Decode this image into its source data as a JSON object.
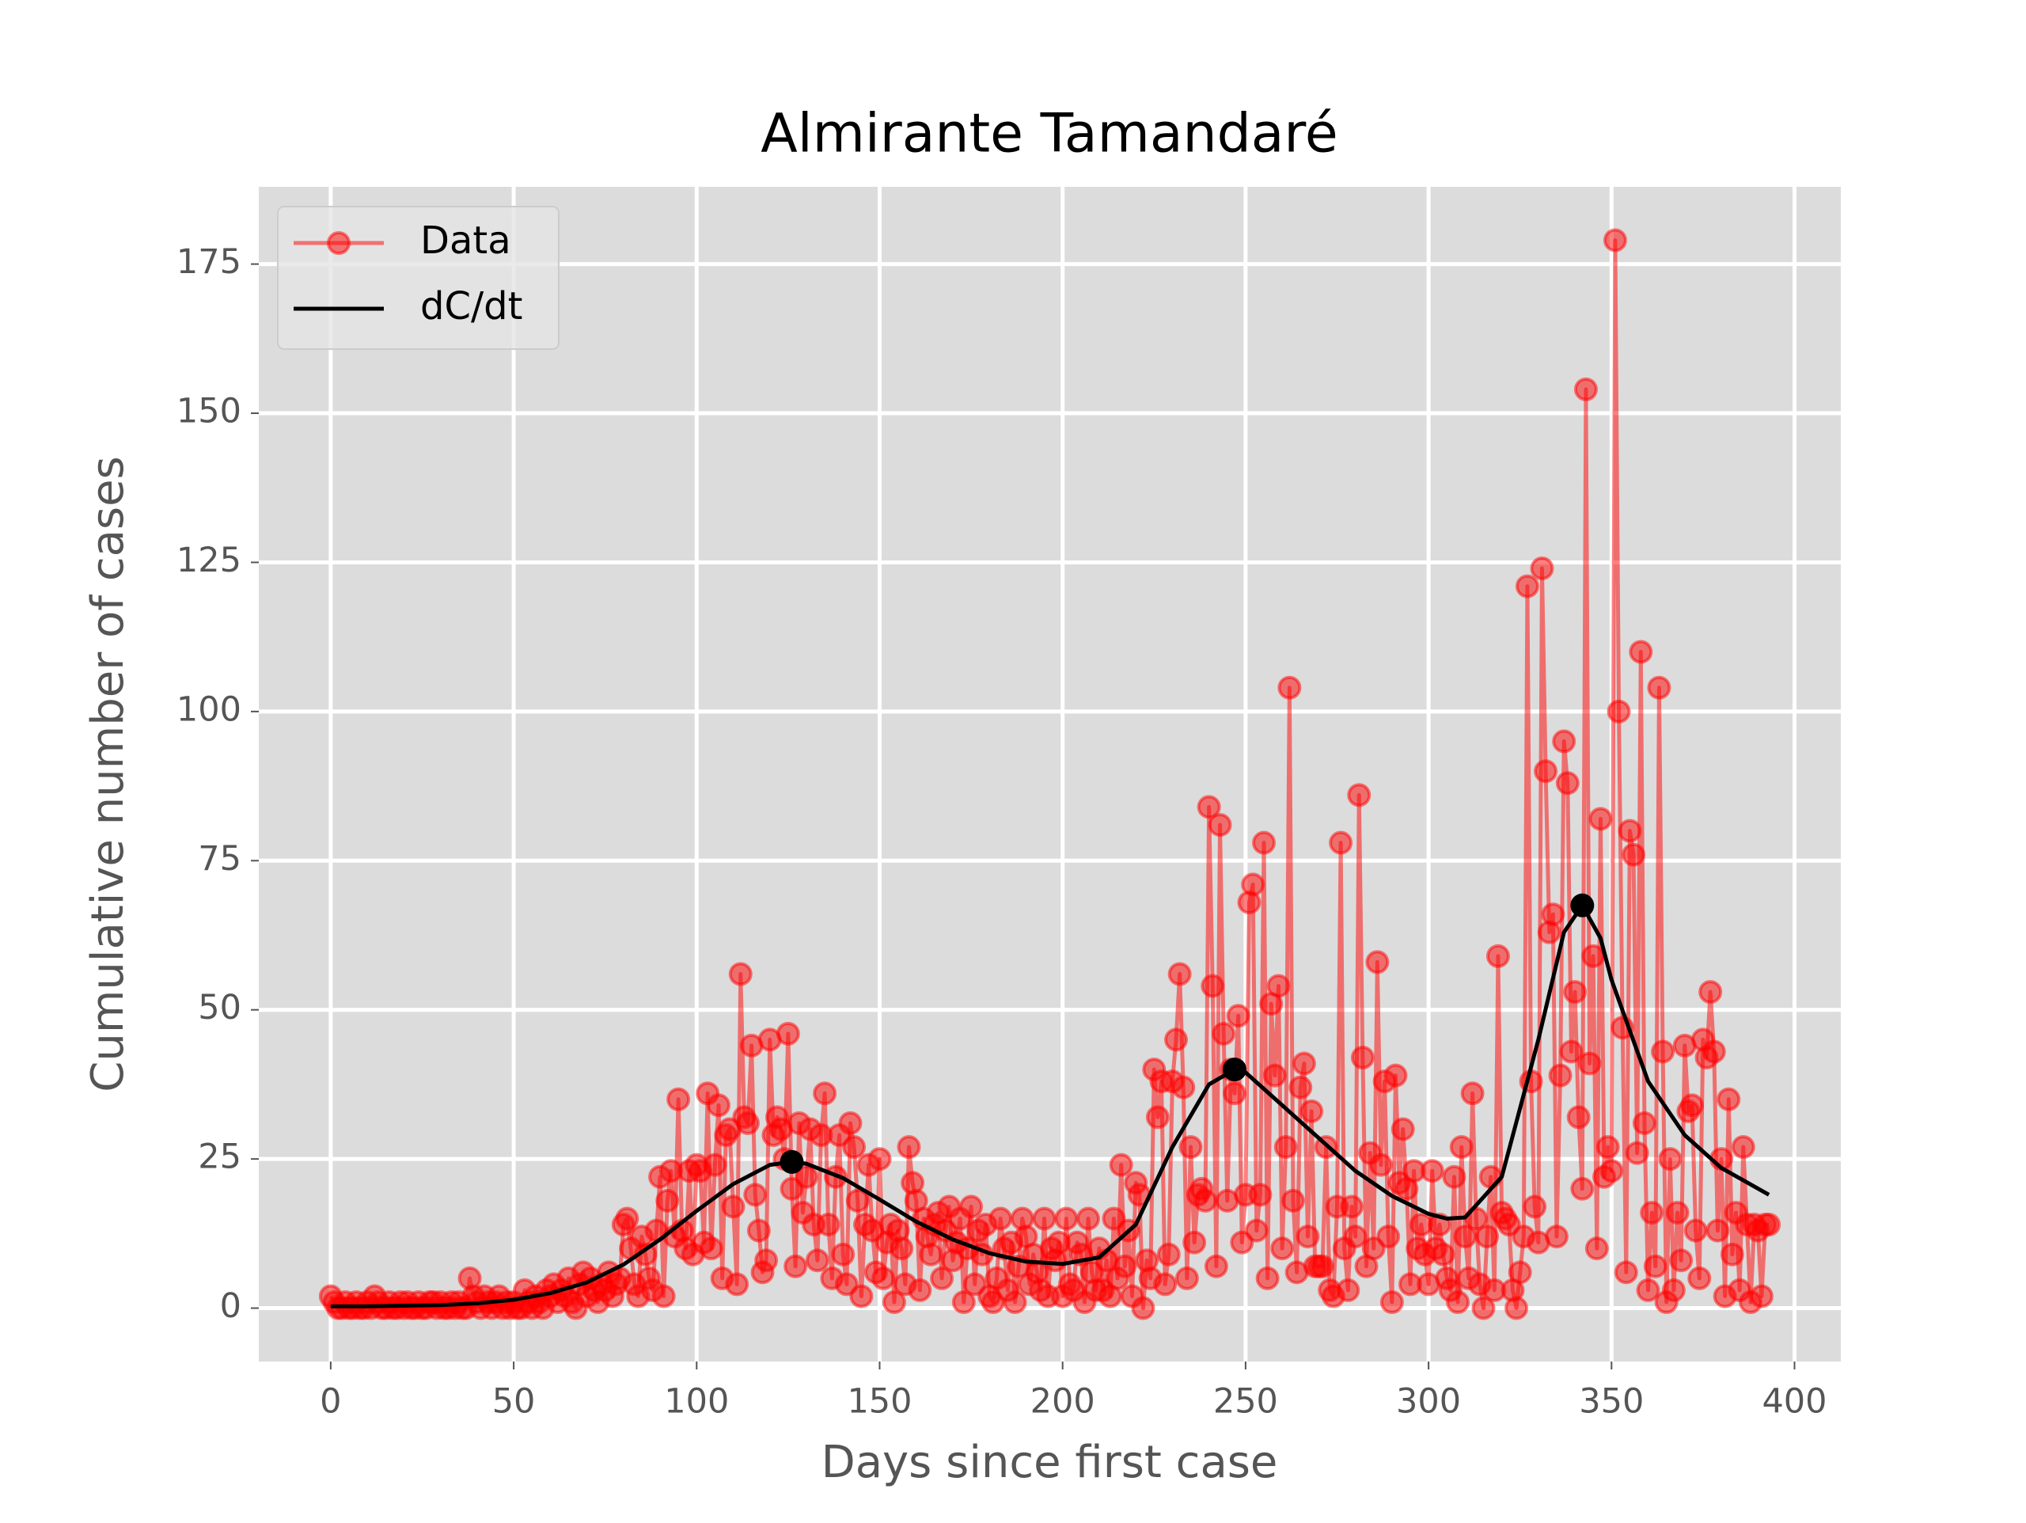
{
  "chart_data": {
    "type": "line",
    "title": "Almirante Tamandaré",
    "xlabel": "Days since first case",
    "ylabel": "Cumulative number of cases",
    "xlim": [
      -19.65,
      412.65
    ],
    "ylim": [
      -8.95,
      187.95
    ],
    "xticks": [
      0,
      50,
      100,
      150,
      200,
      250,
      300,
      350,
      400
    ],
    "yticks": [
      0,
      25,
      50,
      75,
      100,
      125,
      150,
      175
    ],
    "grid": true,
    "legend": "upper left",
    "series": [
      {
        "name": "Data",
        "color": "#ff0000",
        "marker": true,
        "x": [
          0,
          1,
          2,
          3,
          4,
          5,
          6,
          7,
          8,
          9,
          10,
          11,
          12,
          13,
          14,
          15,
          16,
          17,
          18,
          19,
          20,
          21,
          22,
          23,
          24,
          25,
          26,
          27,
          28,
          29,
          30,
          31,
          32,
          33,
          34,
          35,
          36,
          37,
          38,
          39,
          40,
          41,
          42,
          43,
          44,
          45,
          46,
          47,
          48,
          49,
          50,
          51,
          52,
          53,
          54,
          55,
          56,
          57,
          58,
          59,
          60,
          61,
          62,
          63,
          64,
          65,
          66,
          67,
          68,
          69,
          70,
          71,
          72,
          73,
          74,
          75,
          76,
          77,
          78,
          79,
          80,
          81,
          82,
          83,
          84,
          85,
          86,
          87,
          88,
          89,
          90,
          91,
          92,
          93,
          94,
          95,
          96,
          97,
          98,
          99,
          100,
          101,
          102,
          103,
          104,
          105,
          106,
          107,
          108,
          109,
          110,
          111,
          112,
          113,
          114,
          115,
          116,
          117,
          118,
          119,
          120,
          121,
          122,
          123,
          124,
          125,
          126,
          127,
          128,
          129,
          130,
          131,
          132,
          133,
          134,
          135,
          136,
          137,
          138,
          139,
          140,
          141,
          142,
          143,
          144,
          145,
          146,
          147,
          148,
          149,
          150,
          151,
          152,
          153,
          154,
          155,
          156,
          157,
          158,
          159,
          160,
          161,
          162,
          163,
          164,
          165,
          166,
          167,
          168,
          169,
          170,
          171,
          172,
          173,
          174,
          175,
          176,
          177,
          178,
          179,
          180,
          181,
          182,
          183,
          184,
          185,
          186,
          187,
          188,
          189,
          190,
          191,
          192,
          193,
          194,
          195,
          196,
          197,
          198,
          199,
          200,
          201,
          202,
          203,
          204,
          205,
          206,
          207,
          208,
          209,
          210,
          211,
          212,
          213,
          214,
          215,
          216,
          217,
          218,
          219,
          220,
          221,
          222,
          223,
          224,
          225,
          226,
          227,
          228,
          229,
          230,
          231,
          232,
          233,
          234,
          235,
          236,
          237,
          238,
          239,
          240,
          241,
          242,
          243,
          244,
          245,
          246,
          247,
          248,
          249,
          250,
          251,
          252,
          253,
          254,
          255,
          256,
          257,
          258,
          259,
          260,
          261,
          262,
          263,
          264,
          265,
          266,
          267,
          268,
          269,
          270,
          271,
          272,
          273,
          274,
          275,
          276,
          277,
          278,
          279,
          280,
          281,
          282,
          283,
          284,
          285,
          286,
          287,
          288,
          289,
          290,
          291,
          292,
          293,
          294,
          295,
          296,
          297,
          298,
          299,
          300,
          301,
          302,
          303,
          304,
          305,
          306,
          307,
          308,
          309,
          310,
          311,
          312,
          313,
          314,
          315,
          316,
          317,
          318,
          319,
          320,
          321,
          322,
          323,
          324,
          325,
          326,
          327,
          328,
          329,
          330,
          331,
          332,
          333,
          334,
          335,
          336,
          337,
          338,
          339,
          340,
          341,
          342,
          343,
          344,
          345,
          346,
          347,
          348,
          349,
          350,
          351,
          352,
          353,
          354,
          355,
          356,
          357,
          358,
          359,
          360,
          361,
          362,
          363,
          364,
          365,
          366,
          367,
          368,
          369,
          370,
          371,
          372,
          373,
          374,
          375,
          376,
          377,
          378,
          379,
          380,
          381,
          382,
          383,
          384,
          385,
          386,
          387,
          388,
          389,
          390,
          391,
          392,
          393
        ],
        "values": [
          2,
          1,
          0,
          0,
          1,
          0,
          0,
          1,
          0,
          0,
          1,
          0,
          2,
          1,
          0,
          0,
          1,
          0,
          0,
          1,
          0,
          1,
          0,
          0,
          1,
          0,
          0,
          1,
          1,
          0,
          1,
          0,
          0,
          1,
          0,
          1,
          0,
          0,
          5,
          2,
          1,
          0,
          2,
          1,
          0,
          1,
          2,
          0,
          1,
          0,
          1,
          0,
          0,
          3,
          1,
          0,
          2,
          1,
          0,
          3,
          2,
          4,
          1,
          3,
          2,
          5,
          1,
          0,
          4,
          6,
          2,
          5,
          3,
          1,
          4,
          3,
          6,
          2,
          4,
          5,
          14,
          15,
          10,
          4,
          2,
          12,
          9,
          5,
          3,
          13,
          22,
          2,
          18,
          23,
          12,
          35,
          13,
          10,
          23,
          9,
          24,
          23,
          11,
          36,
          10,
          24,
          34,
          5,
          29,
          30,
          17,
          4,
          56,
          32,
          31,
          44,
          19,
          13,
          6,
          8,
          45,
          29,
          32,
          30,
          25,
          46,
          20,
          7,
          31,
          16,
          22,
          30,
          14,
          8,
          29,
          36,
          14,
          5,
          22,
          29,
          9,
          4,
          31,
          27,
          18,
          2,
          14,
          24,
          13,
          6,
          25,
          5,
          11,
          14,
          1,
          13,
          10,
          4,
          27,
          21,
          18,
          3,
          15,
          12,
          9,
          14,
          16,
          5,
          13,
          17,
          8,
          11,
          15,
          1,
          10,
          17,
          4,
          13,
          9,
          14,
          2,
          1,
          5,
          15,
          10,
          3,
          11,
          1,
          7,
          15,
          12,
          4,
          9,
          6,
          3,
          15,
          2,
          10,
          8,
          11,
          2,
          15,
          4,
          3,
          11,
          9,
          1,
          15,
          6,
          3,
          10,
          3,
          8,
          2,
          15,
          5,
          24,
          7,
          13,
          2,
          21,
          19,
          0,
          8,
          5,
          40,
          32,
          38,
          4,
          9,
          38,
          45,
          56,
          37,
          5,
          27,
          11,
          19,
          20,
          18,
          84,
          54,
          7,
          81,
          46,
          18,
          40,
          36,
          49,
          11,
          19,
          68,
          71,
          13,
          19,
          78,
          5,
          51,
          39,
          54,
          10,
          27,
          104,
          18,
          6,
          37,
          41,
          12,
          33,
          7,
          7,
          7,
          27,
          3,
          2,
          17,
          78,
          10,
          3,
          17,
          12,
          86,
          42,
          7,
          26,
          10,
          58,
          24,
          38,
          12,
          1,
          39,
          21,
          30,
          20,
          4,
          23,
          10,
          14,
          9,
          4,
          23,
          10,
          14,
          9,
          5,
          3,
          22,
          1,
          27,
          12,
          5,
          36,
          15,
          4,
          0,
          12,
          22,
          3,
          59,
          16,
          15,
          14,
          3,
          0,
          6,
          12,
          121,
          38,
          17,
          11,
          124,
          90,
          63,
          66,
          12,
          39,
          95,
          88,
          43,
          53,
          32,
          20,
          154,
          41,
          59,
          10,
          82,
          22,
          27,
          23,
          179,
          100,
          47,
          6,
          80,
          76,
          26,
          110,
          31,
          3,
          16,
          7,
          104,
          43,
          1,
          25,
          3,
          16,
          8,
          44,
          33,
          34,
          13,
          5,
          45,
          42,
          53,
          43,
          13,
          25,
          2,
          35,
          9,
          16,
          3,
          27,
          14,
          1,
          14,
          13,
          2,
          14,
          14
        ]
      },
      {
        "name": "dC/dt",
        "color": "#000000",
        "marker": false,
        "x": [
          0,
          10,
          20,
          30,
          40,
          50,
          60,
          70,
          80,
          90,
          100,
          110,
          120,
          126,
          130,
          140,
          150,
          160,
          170,
          180,
          190,
          200,
          210,
          220,
          230,
          240,
          247,
          250,
          260,
          270,
          280,
          290,
          300,
          305,
          310,
          320,
          330,
          337,
          342,
          347,
          350,
          360,
          370,
          380,
          393
        ],
        "values": [
          0.3,
          0.3,
          0.4,
          0.5,
          0.8,
          1.4,
          2.5,
          4.3,
          7.3,
          11.5,
          16.3,
          20.8,
          24,
          24.5,
          24.2,
          21.8,
          18.2,
          14.5,
          11.5,
          9.2,
          7.8,
          7.4,
          8.5,
          14,
          27,
          37.5,
          40,
          39.5,
          34,
          28.5,
          23,
          18.8,
          15.8,
          15,
          15.2,
          22,
          45,
          63,
          67.5,
          62,
          55,
          38,
          29,
          23.5,
          19
        ]
      }
    ],
    "peaks": {
      "color": "#000000",
      "x": [
        126,
        247,
        342
      ],
      "values": [
        24.5,
        40,
        67.5
      ]
    }
  }
}
